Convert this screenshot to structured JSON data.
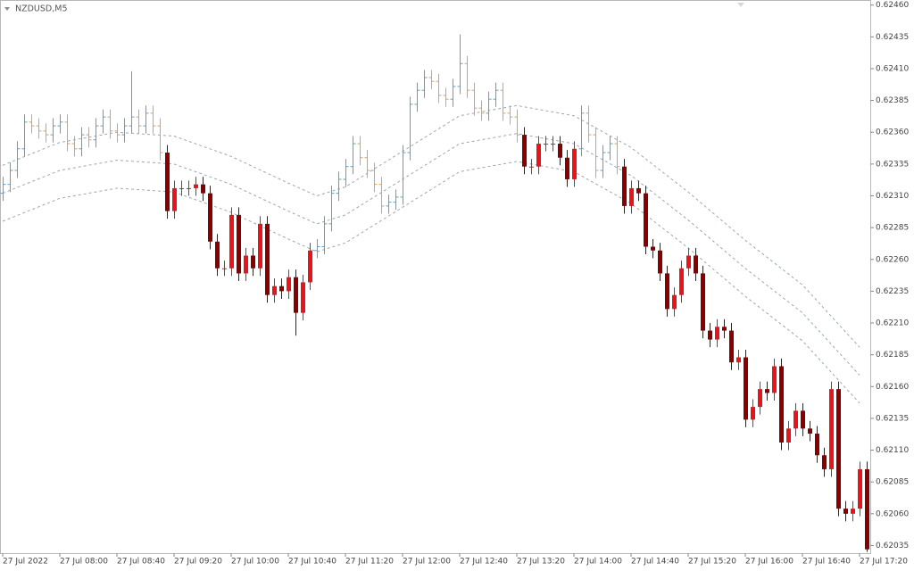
{
  "chart_data": {
    "type": "candlestick",
    "title": "NZDUSD,M5",
    "categories": [
      "27 Jul 2022",
      null,
      null,
      null,
      null,
      null,
      null,
      null,
      "27 Jul 08:00",
      null,
      null,
      null,
      null,
      null,
      null,
      null,
      "27 Jul 08:40",
      null,
      null,
      null,
      null,
      null,
      null,
      null,
      "27 Jul 09:20",
      null,
      null,
      null,
      null,
      null,
      null,
      null,
      "27 Jul 10:00",
      null,
      null,
      null,
      null,
      null,
      null,
      null,
      "27 Jul 10:40",
      null,
      null,
      null,
      null,
      null,
      null,
      null,
      "27 Jul 11:20",
      null,
      null,
      null,
      null,
      null,
      null,
      null,
      "27 Jul 12:00",
      null,
      null,
      null,
      null,
      null,
      null,
      null,
      "27 Jul 12:40",
      null,
      null,
      null,
      null,
      null,
      null,
      null,
      "27 Jul 13:20",
      null,
      null,
      null,
      null,
      null,
      null,
      null,
      "27 Jul 14:00",
      null,
      null,
      null,
      null,
      null,
      null,
      null,
      "27 Jul 14:40",
      null,
      null,
      null,
      null,
      null,
      null,
      null,
      "27 Jul 15:20",
      null,
      null,
      null,
      null,
      null,
      null,
      null,
      "27 Jul 16:00",
      null,
      null,
      null,
      null,
      null,
      null,
      null,
      "27 Jul 16:40",
      null,
      null,
      null,
      null,
      null,
      null,
      null,
      "27 Jul 17:20",
      null
    ],
    "open": [
      0.62312,
      0.62319,
      0.6233,
      0.62347,
      0.62368,
      0.62365,
      0.62361,
      0.62358,
      0.62365,
      0.62368,
      0.62351,
      0.62347,
      0.62358,
      0.62354,
      0.62365,
      0.62372,
      0.62361,
      0.62358,
      0.62365,
      0.62372,
      0.62365,
      0.62375,
      0.62365,
      0.62344,
      0.62298,
      0.62316,
      0.62316,
      0.62316,
      0.62319,
      0.62312,
      0.62274,
      0.62253,
      0.62253,
      0.62295,
      0.62249,
      0.62263,
      0.62253,
      0.62288,
      0.62232,
      0.62239,
      0.62235,
      0.62246,
      0.62218,
      0.62242,
      0.62267,
      0.6227,
      0.62288,
      0.62312,
      0.62323,
      0.62333,
      0.62351,
      0.6234,
      0.6233,
      0.62319,
      0.62302,
      0.62305,
      0.62309,
      0.62344,
      0.62382,
      0.62393,
      0.62403,
      0.624,
      0.62389,
      0.62386,
      0.62396,
      0.62414,
      0.62393,
      0.62379,
      0.62375,
      0.62386,
      0.62393,
      0.62375,
      0.62372,
      0.62358,
      0.62333,
      0.62333,
      0.62351,
      0.62351,
      0.62351,
      0.6234,
      0.62323,
      0.62347,
      0.62375,
      0.62358,
      0.6233,
      0.62344,
      0.62351,
      0.62333,
      0.62302,
      0.62316,
      0.62312,
      0.6227,
      0.62267,
      0.62249,
      0.62221,
      0.62232,
      0.62253,
      0.62263,
      0.62249,
      0.62204,
      0.62197,
      0.62207,
      0.62204,
      0.62179,
      0.62183,
      0.62134,
      0.62144,
      0.62158,
      0.62155,
      0.62176,
      0.62116,
      0.62127,
      0.62141,
      0.62127,
      0.62123,
      0.62106,
      0.62095,
      0.62158,
      0.62064,
      0.6206,
      0.62064,
      0.62095
    ],
    "high": [
      0.62325,
      0.62336,
      0.62353,
      0.62374,
      0.62374,
      0.62371,
      0.62367,
      0.62371,
      0.62374,
      0.62374,
      0.62357,
      0.62364,
      0.62364,
      0.62371,
      0.62378,
      0.62378,
      0.62367,
      0.62371,
      0.62408,
      0.62378,
      0.62381,
      0.62381,
      0.62371,
      0.6235,
      0.62322,
      0.62322,
      0.62322,
      0.62325,
      0.62325,
      0.62318,
      0.6228,
      0.62259,
      0.62301,
      0.62301,
      0.62269,
      0.62269,
      0.62294,
      0.62294,
      0.62245,
      0.62245,
      0.62252,
      0.62252,
      0.62248,
      0.62273,
      0.62276,
      0.62294,
      0.62318,
      0.62329,
      0.62339,
      0.62357,
      0.62357,
      0.62346,
      0.62336,
      0.62325,
      0.62311,
      0.62315,
      0.6235,
      0.62388,
      0.62399,
      0.62409,
      0.62409,
      0.62406,
      0.62395,
      0.62402,
      0.62437,
      0.6242,
      0.62399,
      0.62385,
      0.62392,
      0.62399,
      0.62399,
      0.62381,
      0.62378,
      0.62364,
      0.62339,
      0.62357,
      0.62357,
      0.62357,
      0.62357,
      0.62346,
      0.62353,
      0.62381,
      0.62381,
      0.62364,
      0.6235,
      0.62357,
      0.62357,
      0.62339,
      0.62322,
      0.62322,
      0.62318,
      0.62276,
      0.62273,
      0.62255,
      0.62238,
      0.62259,
      0.62269,
      0.62269,
      0.62255,
      0.6221,
      0.62213,
      0.62213,
      0.6221,
      0.62189,
      0.62189,
      0.6215,
      0.62164,
      0.62164,
      0.62182,
      0.62182,
      0.62133,
      0.62147,
      0.62147,
      0.62133,
      0.62129,
      0.62112,
      0.62164,
      0.62164,
      0.6207,
      0.6207,
      0.62101,
      0.62101
    ],
    "low": [
      0.62306,
      0.62313,
      0.62324,
      0.62341,
      0.62359,
      0.62355,
      0.62352,
      0.62352,
      0.62359,
      0.62345,
      0.62341,
      0.62341,
      0.62348,
      0.62348,
      0.62359,
      0.62355,
      0.62352,
      0.62352,
      0.62359,
      0.62359,
      0.62359,
      0.62359,
      0.62338,
      0.62292,
      0.62292,
      0.6231,
      0.6231,
      0.6231,
      0.62306,
      0.62268,
      0.62247,
      0.62247,
      0.62247,
      0.62243,
      0.62243,
      0.62247,
      0.62247,
      0.62226,
      0.62226,
      0.62229,
      0.62229,
      0.622,
      0.62212,
      0.62236,
      0.62261,
      0.62264,
      0.62282,
      0.62306,
      0.62317,
      0.62327,
      0.62334,
      0.62324,
      0.62313,
      0.62296,
      0.62296,
      0.62299,
      0.62303,
      0.62338,
      0.62376,
      0.62387,
      0.62394,
      0.62383,
      0.6238,
      0.6238,
      0.6239,
      0.62387,
      0.62373,
      0.62369,
      0.62369,
      0.6238,
      0.62369,
      0.62366,
      0.62352,
      0.62327,
      0.62327,
      0.62327,
      0.62345,
      0.62345,
      0.62334,
      0.62317,
      0.62317,
      0.62341,
      0.62352,
      0.62324,
      0.62324,
      0.62338,
      0.62327,
      0.62296,
      0.62296,
      0.62306,
      0.62264,
      0.62261,
      0.62243,
      0.62215,
      0.62215,
      0.62226,
      0.62247,
      0.62243,
      0.62198,
      0.62191,
      0.62191,
      0.62198,
      0.62173,
      0.62173,
      0.62128,
      0.62128,
      0.62138,
      0.62149,
      0.62149,
      0.6211,
      0.6211,
      0.62121,
      0.62121,
      0.62117,
      0.621,
      0.62089,
      0.62089,
      0.62058,
      0.62054,
      0.62054,
      0.62058,
      0.6203
    ],
    "close": [
      0.62319,
      0.6233,
      0.62347,
      0.62368,
      0.62365,
      0.62361,
      0.62358,
      0.62365,
      0.62368,
      0.62351,
      0.62347,
      0.62358,
      0.62354,
      0.62365,
      0.62372,
      0.62361,
      0.62358,
      0.62365,
      0.62372,
      0.62365,
      0.62375,
      0.62365,
      0.62344,
      0.62298,
      0.62316,
      0.62316,
      0.62316,
      0.62319,
      0.62312,
      0.62274,
      0.62253,
      0.62253,
      0.62295,
      0.62249,
      0.62263,
      0.62253,
      0.62288,
      0.62232,
      0.62239,
      0.62235,
      0.62246,
      0.62218,
      0.62242,
      0.62267,
      0.6227,
      0.62288,
      0.62312,
      0.62323,
      0.62333,
      0.62351,
      0.6234,
      0.6233,
      0.62319,
      0.62302,
      0.62305,
      0.62309,
      0.62344,
      0.62382,
      0.62393,
      0.62403,
      0.624,
      0.62389,
      0.62386,
      0.62396,
      0.62414,
      0.62393,
      0.62379,
      0.62375,
      0.62386,
      0.62393,
      0.62375,
      0.62372,
      0.62358,
      0.62333,
      0.62333,
      0.62351,
      0.62351,
      0.62351,
      0.6234,
      0.62323,
      0.62347,
      0.62375,
      0.62358,
      0.6233,
      0.62344,
      0.62351,
      0.62333,
      0.62302,
      0.62316,
      0.62312,
      0.6227,
      0.62267,
      0.62249,
      0.62221,
      0.62232,
      0.62253,
      0.62263,
      0.62249,
      0.62204,
      0.62197,
      0.62207,
      0.62204,
      0.62179,
      0.62183,
      0.62134,
      0.62144,
      0.62158,
      0.62155,
      0.62176,
      0.62116,
      0.62127,
      0.62141,
      0.62127,
      0.62123,
      0.62106,
      0.62095,
      0.62158,
      0.62064,
      0.6206,
      0.62064,
      0.62095,
      0.62032
    ],
    "kinds": [
      "bar",
      "bar",
      "bar",
      "bar",
      "bar",
      "bar",
      "bar",
      "bar",
      "bar",
      "bar",
      "bar",
      "bar",
      "bar",
      "bar",
      "bar",
      "bar",
      "bar",
      "bar",
      "bar",
      "bar",
      "bar",
      "bar",
      "bar",
      "candle",
      "candle",
      "candle",
      "candle",
      "candle",
      "candle",
      "candle",
      "candle",
      "candle",
      "candle",
      "candle",
      "candle",
      "candle",
      "candle",
      "candle",
      "candle",
      "candle",
      "candle",
      "candle",
      "candle",
      "candle",
      "bar",
      "bar",
      "bar",
      "bar",
      "bar",
      "bar",
      "bar",
      "bar",
      "bar",
      "bar",
      "bar",
      "bar",
      "bar",
      "bar",
      "bar",
      "bar",
      "bar",
      "bar",
      "bar",
      "bar",
      "bar",
      "bar",
      "bar",
      "bar",
      "bar",
      "bar",
      "bar",
      "bar",
      "bar",
      "candle",
      "candle",
      "candle",
      "candle",
      "candle",
      "candle",
      "candle",
      "candle",
      "bar",
      "bar",
      "bar",
      "bar",
      "bar",
      "bar",
      "candle",
      "candle",
      "candle",
      "candle",
      "candle",
      "candle",
      "candle",
      "candle",
      "candle",
      "candle",
      "candle",
      "candle",
      "candle",
      "candle",
      "candle",
      "candle",
      "candle",
      "candle",
      "candle",
      "candle",
      "candle",
      "candle",
      "candle",
      "candle",
      "candle",
      "candle",
      "candle",
      "candle",
      "candle",
      "candle",
      "candle",
      "candle",
      "candle",
      "candle",
      "candle"
    ],
    "colors": {
      "bar_up": "#5f9fc6",
      "bar_down": "#d8a06a",
      "candle_up": "#e8141c",
      "candle_down": "#860000",
      "band": "#9aa6b6"
    },
    "band_x": [
      0,
      8,
      16,
      24,
      32,
      40,
      44,
      48,
      56,
      64,
      72,
      80,
      88,
      96,
      104,
      112,
      120
    ],
    "bands": [
      {
        "values": [
          0.62334,
          0.62352,
          0.6236,
          0.62357,
          0.62341,
          0.6232,
          0.6231,
          0.62317,
          0.62345,
          0.62373,
          0.62381,
          0.62373,
          0.62348,
          0.62313,
          0.62275,
          0.6224,
          0.62191
        ]
      },
      {
        "values": [
          0.62312,
          0.6233,
          0.62338,
          0.62335,
          0.62319,
          0.62298,
          0.62288,
          0.62295,
          0.62323,
          0.62351,
          0.62359,
          0.62351,
          0.62326,
          0.62291,
          0.62253,
          0.62218,
          0.62169
        ]
      },
      {
        "values": [
          0.6229,
          0.62308,
          0.62316,
          0.62313,
          0.62297,
          0.62276,
          0.62266,
          0.62273,
          0.62301,
          0.62329,
          0.62337,
          0.62329,
          0.62304,
          0.62269,
          0.62231,
          0.62196,
          0.62147
        ]
      }
    ],
    "ylim": [
      0.62029,
      0.62464
    ],
    "yticks": [
      {
        "value": 0.6246,
        "label": "0.62460"
      },
      0.62435,
      {
        "value": 0.6241,
        "label": "0.62410"
      },
      0.62385,
      {
        "value": 0.6236,
        "label": "0.62360"
      },
      0.62335,
      {
        "value": 0.6231,
        "label": "0.62310"
      },
      0.62285,
      {
        "value": 0.6226,
        "label": "0.62260"
      },
      0.62235,
      {
        "value": 0.6221,
        "label": "0.62210"
      },
      0.62185,
      {
        "value": 0.6216,
        "label": "0.62160"
      },
      0.62135,
      {
        "value": 0.6211,
        "label": "0.62110"
      },
      0.62085,
      {
        "value": 0.6206,
        "label": "0.62060"
      },
      0.62035
    ]
  }
}
